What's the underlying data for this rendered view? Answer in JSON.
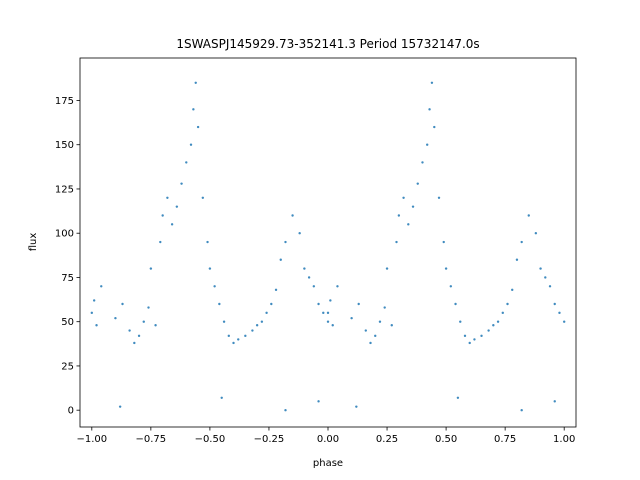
{
  "chart_data": {
    "type": "scatter",
    "title": "1SWASPJ145929.73-352141.3 Period 15732147.0s",
    "xlabel": "phase",
    "ylabel": "flux",
    "xlim": [
      -1.05,
      1.05
    ],
    "ylim": [
      -9.5,
      199
    ],
    "grid": false,
    "legend": "none",
    "marker_color": "#1f77b4",
    "x_ticks": [
      -1.0,
      -0.75,
      -0.5,
      -0.25,
      0.0,
      0.25,
      0.5,
      0.75,
      1.0
    ],
    "x_tick_labels": [
      "−1.00",
      "−0.75",
      "−0.50",
      "−0.25",
      "0.00",
      "0.25",
      "0.50",
      "0.75",
      "1.00"
    ],
    "y_ticks": [
      0,
      25,
      50,
      75,
      100,
      125,
      150,
      175
    ],
    "y_tick_labels": [
      "0",
      "25",
      "50",
      "75",
      "100",
      "125",
      "150",
      "175"
    ],
    "series": [
      {
        "points": [
          [
            -1.0,
            55
          ],
          [
            -0.99,
            62
          ],
          [
            -0.98,
            48
          ],
          [
            -0.96,
            70
          ],
          [
            -0.9,
            52
          ],
          [
            -0.87,
            60
          ],
          [
            -0.84,
            45
          ],
          [
            -0.82,
            38
          ],
          [
            -0.8,
            42
          ],
          [
            -0.78,
            50
          ],
          [
            -0.76,
            58
          ],
          [
            -0.75,
            80
          ],
          [
            -0.73,
            48
          ],
          [
            -0.71,
            95
          ],
          [
            -0.7,
            110
          ],
          [
            -0.68,
            120
          ],
          [
            -0.66,
            105
          ],
          [
            -0.64,
            115
          ],
          [
            -0.62,
            128
          ],
          [
            -0.6,
            140
          ],
          [
            -0.58,
            150
          ],
          [
            -0.57,
            170
          ],
          [
            -0.56,
            185
          ],
          [
            -0.55,
            160
          ],
          [
            -0.53,
            120
          ],
          [
            -0.51,
            95
          ],
          [
            -0.5,
            80
          ],
          [
            -0.48,
            70
          ],
          [
            -0.46,
            60
          ],
          [
            -0.44,
            50
          ],
          [
            -0.42,
            42
          ],
          [
            -0.4,
            38
          ],
          [
            -0.38,
            40
          ],
          [
            -0.35,
            42
          ],
          [
            -0.32,
            45
          ],
          [
            -0.3,
            48
          ],
          [
            -0.28,
            50
          ],
          [
            -0.26,
            55
          ],
          [
            -0.24,
            60
          ],
          [
            -0.22,
            68
          ],
          [
            -0.2,
            85
          ],
          [
            -0.18,
            95
          ],
          [
            -0.15,
            110
          ],
          [
            -0.12,
            100
          ],
          [
            -0.1,
            80
          ],
          [
            -0.08,
            75
          ],
          [
            -0.06,
            70
          ],
          [
            -0.04,
            60
          ],
          [
            -0.02,
            55
          ],
          [
            0.0,
            50
          ],
          [
            0.0,
            55
          ],
          [
            0.01,
            62
          ],
          [
            0.02,
            48
          ],
          [
            0.04,
            70
          ],
          [
            0.1,
            52
          ],
          [
            0.13,
            60
          ],
          [
            0.16,
            45
          ],
          [
            0.18,
            38
          ],
          [
            0.2,
            42
          ],
          [
            0.22,
            50
          ],
          [
            0.24,
            58
          ],
          [
            0.25,
            80
          ],
          [
            0.27,
            48
          ],
          [
            0.29,
            95
          ],
          [
            0.3,
            110
          ],
          [
            0.32,
            120
          ],
          [
            0.34,
            105
          ],
          [
            0.36,
            115
          ],
          [
            0.38,
            128
          ],
          [
            0.4,
            140
          ],
          [
            0.42,
            150
          ],
          [
            0.43,
            170
          ],
          [
            0.44,
            185
          ],
          [
            0.45,
            160
          ],
          [
            0.47,
            120
          ],
          [
            0.49,
            95
          ],
          [
            0.5,
            80
          ],
          [
            0.52,
            70
          ],
          [
            0.54,
            60
          ],
          [
            0.56,
            50
          ],
          [
            0.58,
            42
          ],
          [
            0.6,
            38
          ],
          [
            0.62,
            40
          ],
          [
            0.65,
            42
          ],
          [
            0.68,
            45
          ],
          [
            0.7,
            48
          ],
          [
            0.72,
            50
          ],
          [
            0.74,
            55
          ],
          [
            0.76,
            60
          ],
          [
            0.78,
            68
          ],
          [
            0.8,
            85
          ],
          [
            0.82,
            95
          ],
          [
            0.85,
            110
          ],
          [
            0.88,
            100
          ],
          [
            0.9,
            80
          ],
          [
            0.92,
            75
          ],
          [
            0.94,
            70
          ],
          [
            0.96,
            60
          ],
          [
            0.98,
            55
          ],
          [
            1.0,
            50
          ],
          [
            -0.88,
            2
          ],
          [
            -0.45,
            7
          ],
          [
            -0.18,
            0
          ],
          [
            -0.04,
            5
          ],
          [
            0.12,
            2
          ],
          [
            0.55,
            7
          ],
          [
            0.82,
            0
          ],
          [
            0.96,
            5
          ]
        ]
      }
    ]
  }
}
